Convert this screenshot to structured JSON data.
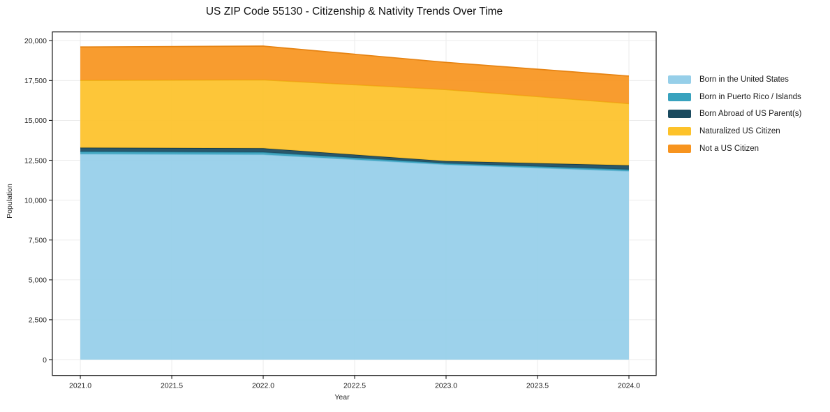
{
  "title": "US ZIP Code 55130 - Citizenship & Nativity Trends Over Time",
  "chart_data": {
    "type": "area",
    "stacked": true,
    "title": "US ZIP Code 55130 - Citizenship & Nativity Trends Over Time",
    "xlabel": "Year",
    "ylabel": "Population",
    "x": [
      2021,
      2022,
      2023,
      2024
    ],
    "series": [
      {
        "name": "Born in the United States",
        "color": "#96cfe9",
        "edge": "#7ec0de",
        "values": [
          12900,
          12860,
          12230,
          11820
        ]
      },
      {
        "name": "Born in Puerto Rico / Islands",
        "color": "#38a2be",
        "edge": "#2d8da7",
        "values": [
          150,
          145,
          80,
          100
        ]
      },
      {
        "name": "Born Abroad of US Parent(s)",
        "color": "#1a4a5f",
        "edge": "#123a4c",
        "values": [
          240,
          250,
          140,
          265
        ]
      },
      {
        "name": "Naturalized US Citizen",
        "color": "#fdc22a",
        "edge": "#edb113",
        "values": [
          4225,
          4290,
          4485,
          3870
        ]
      },
      {
        "name": "Not a US Citizen",
        "color": "#f7941f",
        "edge": "#e68312",
        "values": [
          2090,
          2115,
          1705,
          1725
        ]
      }
    ],
    "xlim": [
      2020.847,
      2024.149
    ],
    "ylim": [
      -995,
      20550
    ],
    "xticks": [
      2021.0,
      2021.5,
      2022.0,
      2022.5,
      2023.0,
      2023.5,
      2024.0
    ],
    "xtick_labels": [
      "2021.0",
      "2021.5",
      "2022.0",
      "2022.5",
      "2023.0",
      "2023.5",
      "2024.0"
    ],
    "yticks": [
      0,
      2500,
      5000,
      7500,
      10000,
      12500,
      15000,
      17500,
      20000
    ],
    "ytick_labels": [
      "0",
      "2,500",
      "5,000",
      "7,500",
      "10,000",
      "12,500",
      "15,000",
      "17,500",
      "20,000"
    ],
    "grid": true,
    "legend_position": "right-outside"
  }
}
